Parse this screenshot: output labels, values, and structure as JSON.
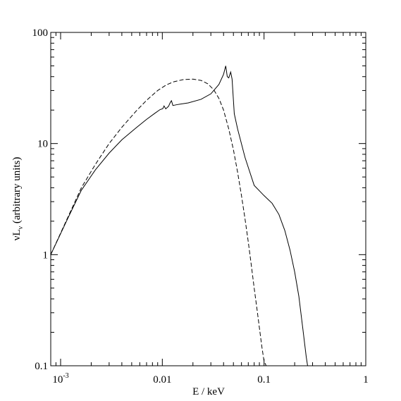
{
  "chart_data": {
    "type": "line",
    "xscale": "log",
    "yscale": "log",
    "xlim": [
      0.0008,
      1.0
    ],
    "ylim": [
      0.1,
      100
    ],
    "xlabel": "E / keV",
    "ylabel_main": "νL",
    "ylabel_sub": "ν",
    "ylabel_rest": " (arbitrary units)",
    "grid": false,
    "xticks": [
      {
        "value": 0.001,
        "base": "10",
        "exp": "-3"
      },
      {
        "value": 0.01,
        "label": "0.01"
      },
      {
        "value": 0.1,
        "label": "0.1"
      },
      {
        "value": 1,
        "label": "1"
      }
    ],
    "yticks": [
      {
        "value": 0.1,
        "label": "0.1"
      },
      {
        "value": 1,
        "label": "1"
      },
      {
        "value": 10,
        "label": "10"
      },
      {
        "value": 100,
        "label": "100"
      }
    ],
    "series": [
      {
        "style": "solid",
        "x": [
          0.0008,
          0.0012,
          0.0016,
          0.0022,
          0.003,
          0.004,
          0.0055,
          0.007,
          0.0085,
          0.0095,
          0.0101,
          0.0104,
          0.0108,
          0.0115,
          0.012,
          0.0123,
          0.0127,
          0.014,
          0.018,
          0.024,
          0.03,
          0.036,
          0.04,
          0.042,
          0.0435,
          0.045,
          0.047,
          0.0485,
          0.051,
          0.055,
          0.065,
          0.08,
          0.1,
          0.12,
          0.14,
          0.16,
          0.18,
          0.2,
          0.22,
          0.24,
          0.26,
          0.268
        ],
        "y": [
          1.0,
          2.2,
          3.8,
          5.8,
          8.2,
          10.8,
          13.8,
          16.5,
          18.8,
          20.2,
          20.6,
          21.8,
          20.5,
          21.6,
          23.5,
          24.3,
          22.0,
          22.4,
          23.2,
          25.0,
          28.0,
          34.0,
          42.0,
          50.0,
          40.0,
          39.0,
          44.0,
          38.0,
          18.5,
          13.5,
          7.5,
          4.2,
          3.4,
          2.9,
          2.3,
          1.65,
          1.1,
          0.7,
          0.42,
          0.22,
          0.12,
          0.1
        ]
      },
      {
        "style": "dashed",
        "x": [
          0.0008,
          0.0012,
          0.0016,
          0.0022,
          0.003,
          0.004,
          0.0055,
          0.007,
          0.009,
          0.011,
          0.013,
          0.016,
          0.02,
          0.024,
          0.028,
          0.032,
          0.036,
          0.04,
          0.045,
          0.05,
          0.055,
          0.06,
          0.065,
          0.07,
          0.075,
          0.08,
          0.085,
          0.09,
          0.095,
          0.1,
          0.105
        ],
        "y": [
          1.0,
          2.25,
          4.0,
          6.5,
          10.0,
          14.0,
          19.5,
          24.5,
          30.0,
          33.8,
          36.0,
          37.6,
          38.0,
          37.0,
          34.5,
          30.5,
          25.5,
          20.0,
          13.5,
          8.8,
          5.5,
          3.4,
          2.1,
          1.3,
          0.8,
          0.5,
          0.33,
          0.22,
          0.15,
          0.11,
          0.1
        ]
      }
    ]
  }
}
